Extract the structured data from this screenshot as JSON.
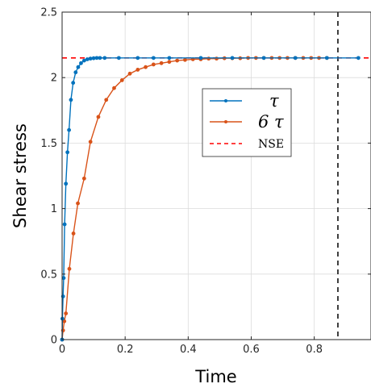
{
  "chart_data": {
    "type": "line",
    "xlabel": "Time",
    "ylabel": "Shear stress",
    "xlim": [
      0,
      0.98
    ],
    "ylim": [
      0,
      2.5
    ],
    "xticks": [
      "0",
      "0.2",
      "0.4",
      "0.6",
      "0.8"
    ],
    "xtick_values": [
      0,
      0.2,
      0.4,
      0.6,
      0.8
    ],
    "yticks": [
      "0",
      "0.5",
      "1",
      "1.5",
      "2",
      "2.5"
    ],
    "ytick_values": [
      0,
      0.5,
      1,
      1.5,
      2,
      2.5
    ],
    "grid": true,
    "legend_position": "center-right",
    "series": [
      {
        "name": "τ",
        "color": "#0072BD",
        "marker": "dot",
        "x": [
          0,
          0.001,
          0.003,
          0.005,
          0.008,
          0.012,
          0.017,
          0.022,
          0.028,
          0.035,
          0.043,
          0.051,
          0.06,
          0.07,
          0.08,
          0.09,
          0.1,
          0.11,
          0.12,
          0.135,
          0.18,
          0.24,
          0.29,
          0.34,
          0.44,
          0.54,
          0.64,
          0.74,
          0.84,
          0.94
        ],
        "y": [
          0,
          0.16,
          0.33,
          0.47,
          0.88,
          1.19,
          1.43,
          1.6,
          1.83,
          1.96,
          2.04,
          2.08,
          2.11,
          2.13,
          2.14,
          2.145,
          2.148,
          2.15,
          2.15,
          2.15,
          2.15,
          2.15,
          2.15,
          2.15,
          2.15,
          2.15,
          2.15,
          2.15,
          2.15,
          2.15
        ]
      },
      {
        "name": "6 τ",
        "color": "#D95319",
        "marker": "dot",
        "x": [
          0,
          0.003,
          0.007,
          0.012,
          0.023,
          0.036,
          0.05,
          0.07,
          0.09,
          0.115,
          0.14,
          0.165,
          0.19,
          0.215,
          0.24,
          0.265,
          0.29,
          0.315,
          0.34,
          0.365,
          0.39,
          0.415,
          0.44,
          0.465,
          0.49,
          0.515,
          0.54,
          0.565,
          0.59,
          0.615,
          0.64,
          0.665,
          0.69,
          0.715,
          0.74,
          0.765,
          0.79,
          0.815,
          0.84
        ],
        "y": [
          0,
          0.07,
          0.14,
          0.2,
          0.54,
          0.81,
          1.04,
          1.23,
          1.51,
          1.7,
          1.83,
          1.92,
          1.98,
          2.03,
          2.06,
          2.08,
          2.1,
          2.11,
          2.12,
          2.13,
          2.135,
          2.14,
          2.14,
          2.145,
          2.145,
          2.148,
          2.148,
          2.148,
          2.15,
          2.15,
          2.15,
          2.15,
          2.15,
          2.15,
          2.15,
          2.15,
          2.15,
          2.15,
          2.15
        ]
      },
      {
        "name": "NSE",
        "color": "#FF0000",
        "style": "dashed",
        "x": [
          0,
          0.98
        ],
        "y": [
          2.15,
          2.15
        ]
      }
    ],
    "vertical_line": {
      "x": 0.875,
      "color": "#000000",
      "style": "dashed"
    }
  }
}
